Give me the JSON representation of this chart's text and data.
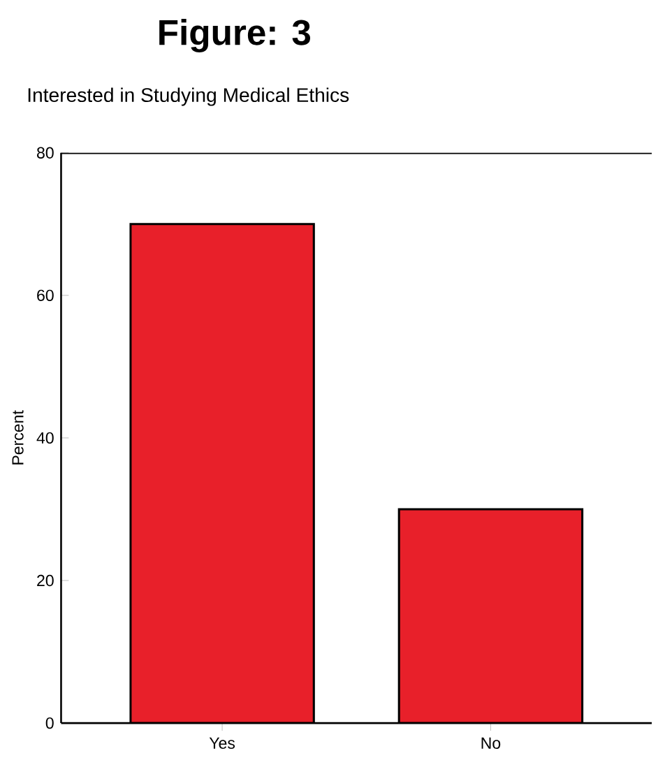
{
  "chart_data": {
    "type": "bar",
    "title": "Figure: 3",
    "subtitle": "Interested in Studying Medical Ethics",
    "ylabel": "Percent",
    "categories": [
      "Yes",
      "No"
    ],
    "values": [
      70,
      30
    ],
    "color": "#e8202a",
    "ylim": [
      0,
      80
    ],
    "yticks": [
      0,
      20,
      40,
      60,
      80
    ],
    "grid": false
  }
}
